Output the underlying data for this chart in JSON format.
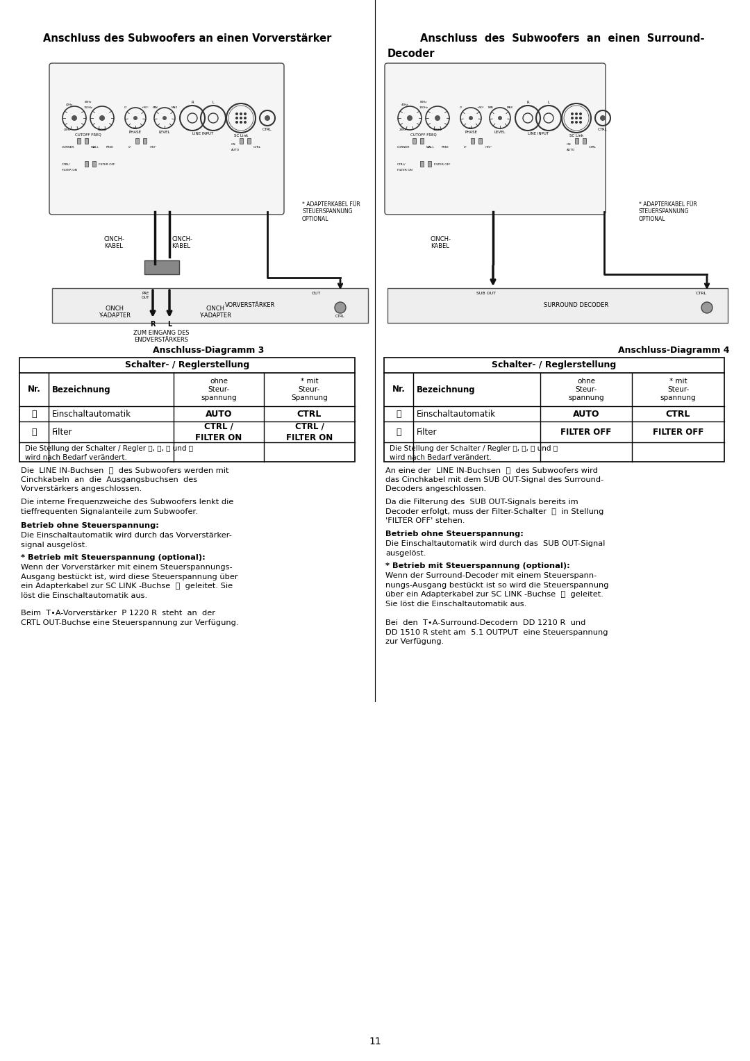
{
  "page_number": "11",
  "bg_color": "#ffffff",
  "text_color": "#000000",
  "left_title": "Anschluss des Subwoofers an einen Vorverstärker",
  "right_title_line1": "Anschluss  des  Subwoofers  an  einen  Surround-",
  "right_title_line2": "Decoder",
  "left_diagram_label": "Anschluss-Diagramm 3",
  "right_diagram_label": "Anschluss-Diagramm 4",
  "left_table_header": "Schalter- / Reglerstellung",
  "right_table_header": "Schalter- / Reglerstellung",
  "col_nr": "Nr.",
  "col_bez": "Bezeichnung",
  "col_ohne": "ohne\nSteur-\nspannung",
  "col_mit_left": "* mit\nSteur-\nSpannung",
  "col_mit_right": "* mit\nSteur-\nspannung",
  "left_row1_nr": "ⓑ",
  "left_row1_bez": "Einschaltautomatik",
  "left_row1_ohne": "AUTO",
  "left_row1_mit": "CTRL",
  "left_row2_nr": "ⓙ",
  "left_row2_bez": "Filter",
  "left_row2_ohne": "CTRL /\nFILTER ON",
  "left_row2_mit": "CTRL /\nFILTER ON",
  "left_table_note": "Die Stellung der Schalter / Regler ⓕ, ⓖ, ⓗ und ⓘ\nwird nach Bedarf verändert.",
  "right_row1_nr": "ⓑ",
  "right_row1_bez": "Einschaltautomatik",
  "right_row1_ohne": "AUTO",
  "right_row1_mit": "CTRL",
  "right_row2_nr": "ⓙ",
  "right_row2_bez": "Filter",
  "right_row2_ohne": "FILTER OFF",
  "right_row2_mit": "FILTER OFF",
  "right_table_note": "Die Stellung der Schalter / Regler ⓕ, ⓖ, ⓗ und ⓘ\nwird nach Bedarf verändert."
}
